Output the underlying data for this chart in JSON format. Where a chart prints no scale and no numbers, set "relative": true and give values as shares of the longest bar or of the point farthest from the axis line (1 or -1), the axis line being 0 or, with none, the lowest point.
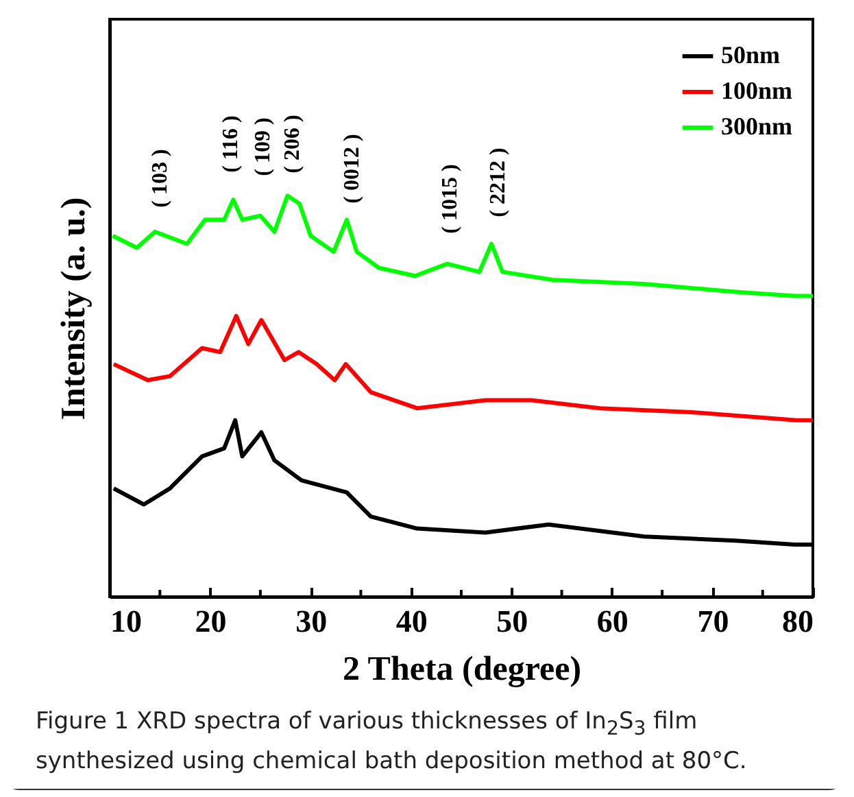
{
  "chart_data": {
    "type": "line",
    "relative": true,
    "xlabel": "2 Theta (degree)",
    "ylabel": "Intensity (a. u.)",
    "xlim": [
      10,
      80
    ],
    "xticks": [
      10,
      {
        "value": 15,
        "label": null
      },
      20,
      {
        "value": 25,
        "label": null
      },
      30,
      {
        "value": 35,
        "label": null
      },
      40,
      {
        "value": 45,
        "label": null
      },
      50,
      {
        "value": 55,
        "label": null
      },
      60,
      {
        "value": 65,
        "label": null
      },
      70,
      {
        "value": 75,
        "label": null
      },
      80
    ],
    "tick_labels": "x",
    "legend": "top right",
    "series": [
      {
        "name": "50nm",
        "color": "#000000",
        "x": [
          10.4,
          13.4,
          16,
          19.2,
          21.4,
          22.5,
          23.2,
          25.1,
          26.4,
          29.1,
          33.6,
          36,
          40.6,
          47.4,
          53.7,
          63.2,
          72.3,
          78.2,
          80
        ],
        "values": [
          0.27,
          0.23,
          0.27,
          0.35,
          0.37,
          0.44,
          0.35,
          0.41,
          0.34,
          0.29,
          0.26,
          0.2,
          0.17,
          0.16,
          0.18,
          0.15,
          0.14,
          0.13,
          0.13
        ]
      },
      {
        "name": "100nm",
        "color": "#ff0000",
        "x": [
          10.4,
          13.8,
          16,
          19.2,
          21,
          22.6,
          23.8,
          25.1,
          27.4,
          28.8,
          30.6,
          32.4,
          33.5,
          36,
          40.6,
          47.4,
          52,
          58.8,
          67.9,
          78.4,
          80
        ],
        "values": [
          0.58,
          0.54,
          0.55,
          0.62,
          0.61,
          0.7,
          0.63,
          0.69,
          0.59,
          0.61,
          0.58,
          0.54,
          0.58,
          0.51,
          0.47,
          0.49,
          0.49,
          0.47,
          0.46,
          0.44,
          0.44
        ]
      },
      {
        "name": "300nm",
        "color": "#00ff00",
        "x": [
          10.3,
          12.7,
          14.5,
          17.7,
          19.5,
          21.4,
          22.3,
          23.2,
          25,
          26.4,
          27.7,
          28.9,
          30,
          32.3,
          33.6,
          34.6,
          36.8,
          40.4,
          43.6,
          46.8,
          48,
          49.1,
          54.1,
          63.2,
          72.3,
          78.2,
          80
        ],
        "values": [
          0.9,
          0.87,
          0.91,
          0.88,
          0.94,
          0.94,
          0.99,
          0.94,
          0.95,
          0.91,
          1,
          0.98,
          0.9,
          0.86,
          0.94,
          0.86,
          0.82,
          0.8,
          0.83,
          0.81,
          0.88,
          0.81,
          0.79,
          0.78,
          0.76,
          0.75,
          0.75
        ]
      }
    ],
    "annotations": [
      "( 103 )",
      "( 116 )",
      "( 109 )",
      "( 206 )",
      "( 0012 )",
      "( 1015 )",
      "( 2212 )",
      "Figure 1 XRD spectra of various thicknesses of In$_{2}$S$_{3}$ film synthesized using chemical bath deposition method at 80°C."
    ]
  }
}
